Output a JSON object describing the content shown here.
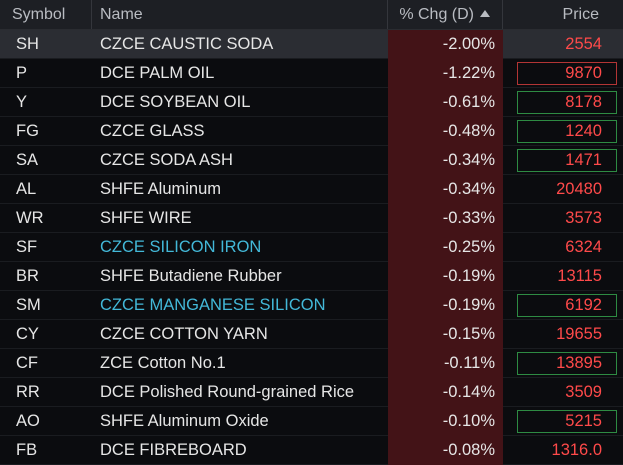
{
  "header": {
    "symbol": "Symbol",
    "name": "Name",
    "pct_chg": "% Chg (D)",
    "price": "Price"
  },
  "colors": {
    "background": "#0b0c0f",
    "header_bg": "#1d1f24",
    "pct_bg": "#431317",
    "price_red": "#ff4a4a",
    "link_blue": "#43b8d8",
    "outline_red": "#b33535",
    "outline_green": "#2e8b43"
  },
  "rows": [
    {
      "symbol": "SH",
      "name": "CZCE CAUSTIC SODA",
      "pct": "-2.00%",
      "price": "2554",
      "box": "none",
      "selected": true,
      "link": false
    },
    {
      "symbol": "P",
      "name": "DCE PALM OIL",
      "pct": "-1.22%",
      "price": "9870",
      "box": "red",
      "selected": false,
      "link": false
    },
    {
      "symbol": "Y",
      "name": "DCE SOYBEAN OIL",
      "pct": "-0.61%",
      "price": "8178",
      "box": "green",
      "selected": false,
      "link": false
    },
    {
      "symbol": "FG",
      "name": "CZCE GLASS",
      "pct": "-0.48%",
      "price": "1240",
      "box": "green",
      "selected": false,
      "link": false
    },
    {
      "symbol": "SA",
      "name": "CZCE SODA ASH",
      "pct": "-0.34%",
      "price": "1471",
      "box": "green",
      "selected": false,
      "link": false
    },
    {
      "symbol": "AL",
      "name": "SHFE Aluminum",
      "pct": "-0.34%",
      "price": "20480",
      "box": "none",
      "selected": false,
      "link": false
    },
    {
      "symbol": "WR",
      "name": "SHFE WIRE",
      "pct": "-0.33%",
      "price": "3573",
      "box": "none",
      "selected": false,
      "link": false
    },
    {
      "symbol": "SF",
      "name": "CZCE SILICON IRON",
      "pct": "-0.25%",
      "price": "6324",
      "box": "none",
      "selected": false,
      "link": true
    },
    {
      "symbol": "BR",
      "name": "SHFE Butadiene Rubber",
      "pct": "-0.19%",
      "price": "13115",
      "box": "none",
      "selected": false,
      "link": false
    },
    {
      "symbol": "SM",
      "name": "CZCE MANGANESE SILICON",
      "pct": "-0.19%",
      "price": "6192",
      "box": "green",
      "selected": false,
      "link": true
    },
    {
      "symbol": "CY",
      "name": "CZCE COTTON YARN",
      "pct": "-0.15%",
      "price": "19655",
      "box": "none",
      "selected": false,
      "link": false
    },
    {
      "symbol": "CF",
      "name": "ZCE Cotton No.1",
      "pct": "-0.11%",
      "price": "13895",
      "box": "green",
      "selected": false,
      "link": false
    },
    {
      "symbol": "RR",
      "name": "DCE Polished Round-grained Rice",
      "pct": "-0.14%",
      "price": "3509",
      "box": "none",
      "selected": false,
      "link": false
    },
    {
      "symbol": "AO",
      "name": "SHFE Aluminum Oxide",
      "pct": "-0.10%",
      "price": "5215",
      "box": "green",
      "selected": false,
      "link": false
    },
    {
      "symbol": "FB",
      "name": "DCE FIBREBOARD",
      "pct": "-0.08%",
      "price": "1316.0",
      "box": "none",
      "selected": false,
      "link": false
    }
  ]
}
